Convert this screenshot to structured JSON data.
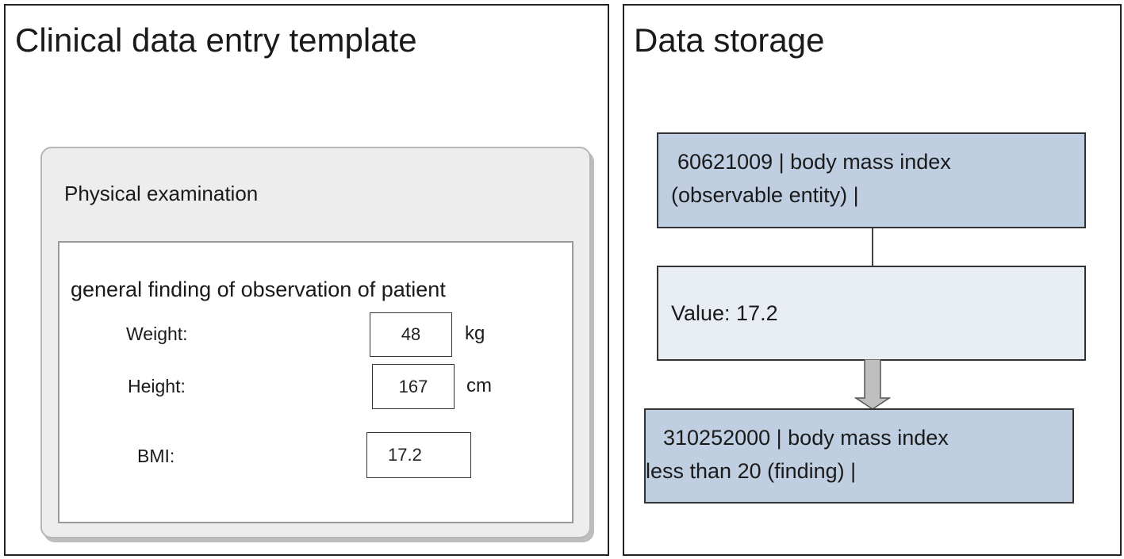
{
  "left_panel": {
    "title": "Clinical data entry template",
    "section": {
      "title": "Physical examination",
      "finding": {
        "title": "general finding of observation of patient",
        "fields": [
          {
            "label": "Weight:",
            "value": "48",
            "unit": "kg"
          },
          {
            "label": "Height:",
            "value": "167",
            "unit": "cm"
          },
          {
            "label": "BMI:",
            "value": "17.2",
            "unit": ""
          }
        ]
      }
    }
  },
  "right_panel": {
    "title": "Data storage",
    "concept": {
      "line1": "60621009 | body mass index",
      "line2": "(observable entity) |"
    },
    "value": "Value: 17.2",
    "finding_concept": {
      "line1": "310252000 | body mass index",
      "line2": "less than 20 (finding) |"
    }
  },
  "colors": {
    "concept_fill": "#bfcfe1",
    "value_fill": "#e8edf4",
    "card_fill": "#ededed",
    "arrow_fill": "#bfbfbf"
  }
}
